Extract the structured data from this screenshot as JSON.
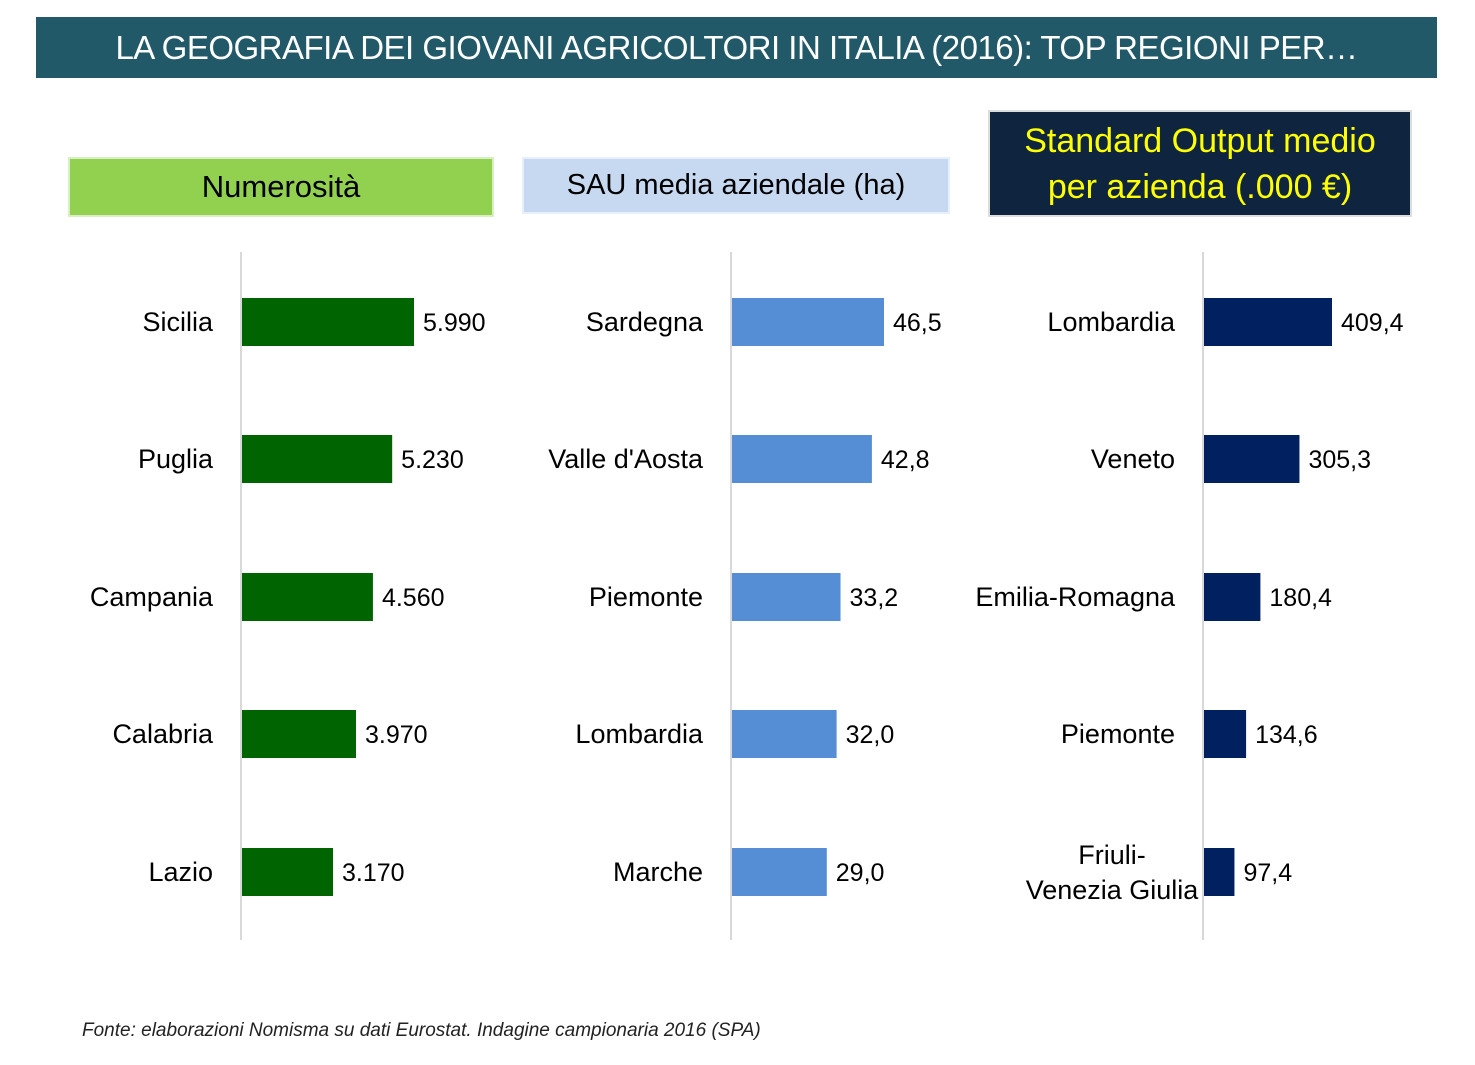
{
  "title": "LA GEOGRAFIA DEI GIOVANI AGRICOLTORI IN ITALIA (2016): TOP REGIONI PER…",
  "source": "Fonte: elaborazioni Nomisma su dati Eurostat. Indagine campionaria 2016 (SPA)",
  "colors": {
    "banner": "#215968",
    "bar_0": "#006400",
    "bar_1": "#558ed5",
    "bar_2": "#002060"
  },
  "chart_data": [
    {
      "type": "bar",
      "orientation": "horizontal",
      "title": "Numerosità",
      "categories": [
        "Sicilia",
        "Puglia",
        "Campania",
        "Calabria",
        "Lazio"
      ],
      "values": [
        5990,
        5230,
        4560,
        3970,
        3170
      ],
      "value_labels": [
        "5.990",
        "5.230",
        "4.560",
        "3.970",
        "3.170"
      ],
      "color": "#006400"
    },
    {
      "type": "bar",
      "orientation": "horizontal",
      "title": "SAU media aziendale (ha)",
      "categories": [
        "Sardegna",
        "Valle d'Aosta",
        "Piemonte",
        "Lombardia",
        "Marche"
      ],
      "values": [
        46.5,
        42.8,
        33.2,
        32.0,
        29.0
      ],
      "value_labels": [
        "46,5",
        "42,8",
        "33,2",
        "32,0",
        "29,0"
      ],
      "color": "#558ed5"
    },
    {
      "type": "bar",
      "orientation": "horizontal",
      "title": "Standard Output medio per azienda (.000 €)",
      "categories": [
        "Lombardia",
        "Veneto",
        "Emilia-Romagna",
        "Piemonte",
        "Friuli-Venezia Giulia"
      ],
      "values": [
        409.4,
        305.3,
        180.4,
        134.6,
        97.4
      ],
      "value_labels": [
        "409,4",
        "305,3",
        "180,4",
        "134,6",
        "97,4"
      ],
      "color": "#002060"
    }
  ]
}
